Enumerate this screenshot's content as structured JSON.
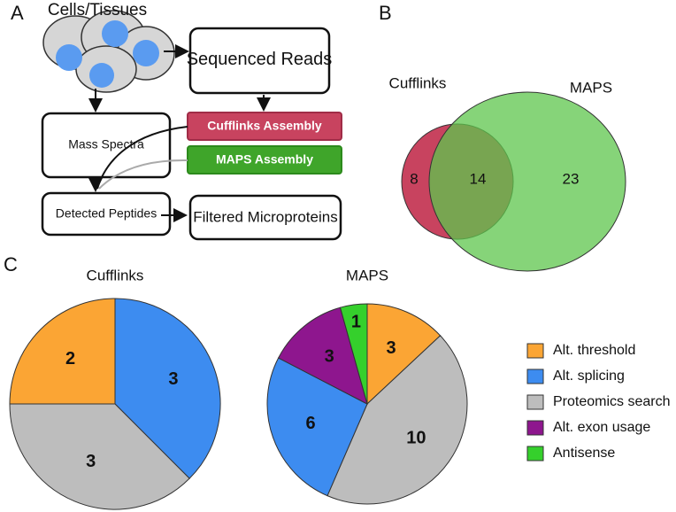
{
  "panel_labels": [
    "A",
    "B",
    "C"
  ],
  "diagram": {
    "nodes": [
      {
        "label": "Cells/Tissues"
      },
      {
        "label": "Sequenced Reads"
      },
      {
        "label": "Mass Spectra"
      },
      {
        "label": "Cufflinks Assembly"
      },
      {
        "label": "MAPS Assembly"
      },
      {
        "label": "Detected Peptides"
      },
      {
        "label": "Filtered Microproteins"
      }
    ]
  },
  "legend": {
    "labels": [
      "Alt. threshold",
      "Alt. splicing",
      "Proteomics search",
      "Alt. exon usage",
      "Antisense"
    ],
    "colors": [
      "#fba534",
      "#3d8cf0",
      "#bdbdbd",
      "#8e168e",
      "#35d02c"
    ]
  },
  "chart_data": [
    {
      "type": "venn",
      "sets": [
        {
          "name": "Cufflinks",
          "color": "#c8435f"
        },
        {
          "name": "MAPS",
          "color": "#5dc64c"
        }
      ],
      "values": [
        8,
        14,
        23
      ]
    },
    {
      "type": "pie",
      "title": "Cufflinks",
      "values": [
        3,
        3,
        2
      ],
      "colors": [
        "#3d8cf0",
        "#bdbdbd",
        "#fba534"
      ]
    },
    {
      "type": "pie",
      "title": "MAPS",
      "values": [
        3,
        10,
        6,
        3,
        1
      ],
      "colors": [
        "#fba534",
        "#bdbdbd",
        "#3d8cf0",
        "#8e168e",
        "#35d02c"
      ]
    }
  ]
}
